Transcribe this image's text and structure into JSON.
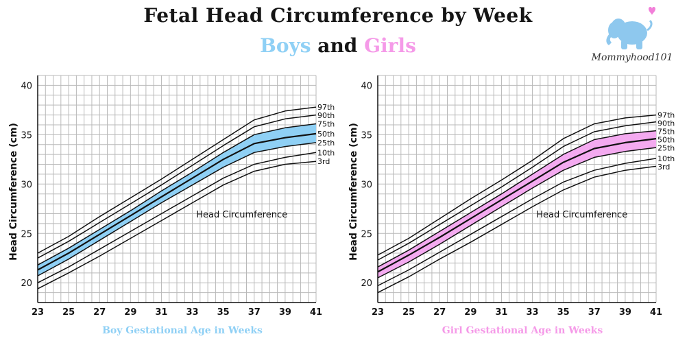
{
  "header": {
    "title": "Fetal Head Circumference by Week",
    "subtitle_boys": "Boys",
    "subtitle_and": "and",
    "subtitle_girls": "Girls"
  },
  "logo": {
    "text": "Mommyhood101",
    "icon": "elephant-heart-icon",
    "elephant_color": "#8ec8ee",
    "heart_color": "#f27fd9"
  },
  "colors": {
    "boys_band": "#8fd0f5",
    "girls_band": "#f4aaf0",
    "boys_label": "#8fd0f5",
    "girls_label": "#f59ae8",
    "curves": "#111111",
    "grid": "#b9b9b9"
  },
  "chart_data": [
    {
      "type": "line",
      "title": "",
      "annotation": "Head Circumference",
      "xlabel": "Boy Gestational Age in Weeks",
      "ylabel": "Head Circumference (cm)",
      "xlim": [
        23,
        41
      ],
      "ylim": [
        18,
        41
      ],
      "x_ticks": [
        23,
        25,
        27,
        29,
        31,
        33,
        35,
        37,
        39,
        41
      ],
      "y_ticks": [
        20,
        25,
        30,
        35,
        40
      ],
      "grid": true,
      "shaded_band": [
        "25th",
        "75th"
      ],
      "x": [
        23,
        25,
        27,
        29,
        31,
        33,
        35,
        37,
        39,
        41
      ],
      "series": [
        {
          "name": "97th",
          "values": [
            23.0,
            24.7,
            26.7,
            28.6,
            30.5,
            32.5,
            34.5,
            36.5,
            37.4,
            37.8
          ]
        },
        {
          "name": "90th",
          "values": [
            22.5,
            24.2,
            26.1,
            28.0,
            29.9,
            31.9,
            33.9,
            35.8,
            36.6,
            37.0
          ]
        },
        {
          "name": "75th",
          "values": [
            21.8,
            23.5,
            25.4,
            27.3,
            29.3,
            31.2,
            33.2,
            35.0,
            35.7,
            36.1
          ]
        },
        {
          "name": "50th",
          "values": [
            21.3,
            23.0,
            24.9,
            26.8,
            28.7,
            30.6,
            32.5,
            34.1,
            34.7,
            35.1
          ]
        },
        {
          "name": "25th",
          "values": [
            20.7,
            22.4,
            24.3,
            26.2,
            28.1,
            29.9,
            31.7,
            33.2,
            33.8,
            34.2
          ]
        },
        {
          "name": "10th",
          "values": [
            20.0,
            21.6,
            23.4,
            25.2,
            27.0,
            28.8,
            30.6,
            32.0,
            32.7,
            33.2
          ]
        },
        {
          "name": "3rd",
          "values": [
            19.4,
            21.0,
            22.7,
            24.5,
            26.3,
            28.1,
            29.9,
            31.3,
            32.0,
            32.3
          ]
        }
      ]
    },
    {
      "type": "line",
      "title": "",
      "annotation": "Head Circumference",
      "xlabel": "Girl Gestational Age in Weeks",
      "ylabel": "Head Circumference (cm)",
      "xlim": [
        23,
        41
      ],
      "ylim": [
        18,
        41
      ],
      "x_ticks": [
        23,
        25,
        27,
        29,
        31,
        33,
        35,
        37,
        39,
        41
      ],
      "y_ticks": [
        20,
        25,
        30,
        35,
        40
      ],
      "grid": true,
      "shaded_band": [
        "25th",
        "75th"
      ],
      "x": [
        23,
        25,
        27,
        29,
        31,
        33,
        35,
        37,
        39,
        41
      ],
      "series": [
        {
          "name": "97th",
          "values": [
            22.8,
            24.5,
            26.5,
            28.5,
            30.4,
            32.4,
            34.6,
            36.1,
            36.7,
            37.0
          ]
        },
        {
          "name": "90th",
          "values": [
            22.3,
            24.0,
            25.9,
            27.8,
            29.7,
            31.7,
            33.8,
            35.3,
            35.9,
            36.3
          ]
        },
        {
          "name": "75th",
          "values": [
            21.6,
            23.3,
            25.2,
            27.1,
            29.0,
            31.0,
            33.0,
            34.5,
            35.1,
            35.4
          ]
        },
        {
          "name": "50th",
          "values": [
            21.1,
            22.8,
            24.6,
            26.5,
            28.4,
            30.3,
            32.2,
            33.6,
            34.2,
            34.6
          ]
        },
        {
          "name": "25th",
          "values": [
            20.5,
            22.1,
            23.9,
            25.8,
            27.7,
            29.6,
            31.4,
            32.7,
            33.3,
            33.7
          ]
        },
        {
          "name": "10th",
          "values": [
            19.7,
            21.3,
            23.1,
            24.9,
            26.7,
            28.5,
            30.2,
            31.4,
            32.1,
            32.6
          ]
        },
        {
          "name": "3rd",
          "values": [
            19.0,
            20.6,
            22.4,
            24.1,
            25.9,
            27.7,
            29.4,
            30.7,
            31.4,
            31.8
          ]
        }
      ]
    }
  ]
}
